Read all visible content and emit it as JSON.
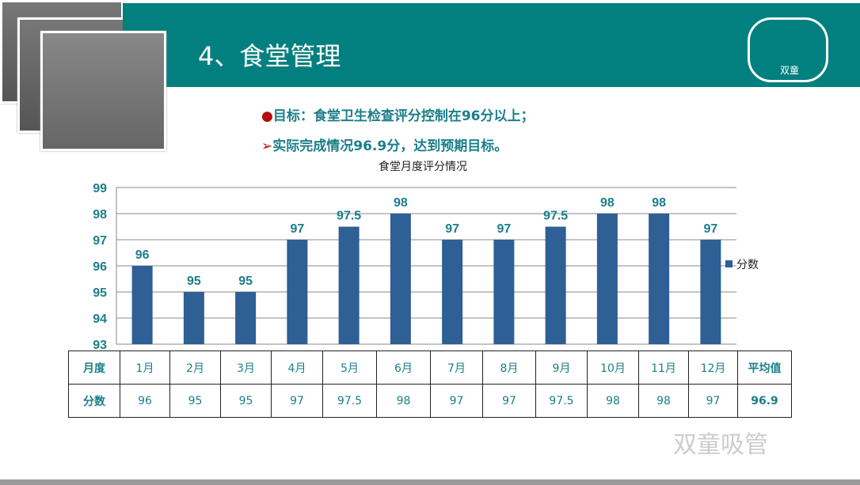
{
  "header": {
    "title": "4、食堂管理",
    "logo_text": "双童"
  },
  "bullets": [
    {
      "marker": "●",
      "text": "目标：食堂卫生检查评分控制在96分以上；"
    },
    {
      "marker": "➢",
      "text": "实际完成情况96.9分，达到预期目标。"
    }
  ],
  "colors": {
    "banner": "#02807f",
    "bar": "#2e5f95",
    "text": "#1b7f8a"
  },
  "chart_data": {
    "type": "bar",
    "title": "食堂月度评分情况",
    "categories": [
      "1月",
      "2月",
      "3月",
      "4月",
      "5月",
      "6月",
      "7月",
      "8月",
      "9月",
      "10月",
      "11月",
      "12月"
    ],
    "series": [
      {
        "name": "分数",
        "values": [
          96,
          95,
          95,
          97,
          97.5,
          98,
          97,
          97,
          97.5,
          98,
          98,
          97
        ]
      }
    ],
    "ylim": [
      93,
      99
    ],
    "yticks": [
      93,
      94,
      95,
      96,
      97,
      98,
      99
    ],
    "grid": true,
    "legend": "right"
  },
  "table": {
    "header": [
      "月度",
      "1月",
      "2月",
      "3月",
      "4月",
      "5月",
      "6月",
      "7月",
      "8月",
      "9月",
      "10月",
      "11月",
      "12月",
      "平均值"
    ],
    "row": [
      "分数",
      "96",
      "95",
      "95",
      "97",
      "97.5",
      "98",
      "97",
      "97",
      "97.5",
      "98",
      "98",
      "97",
      "96.9"
    ]
  },
  "watermark": "双童吸管"
}
